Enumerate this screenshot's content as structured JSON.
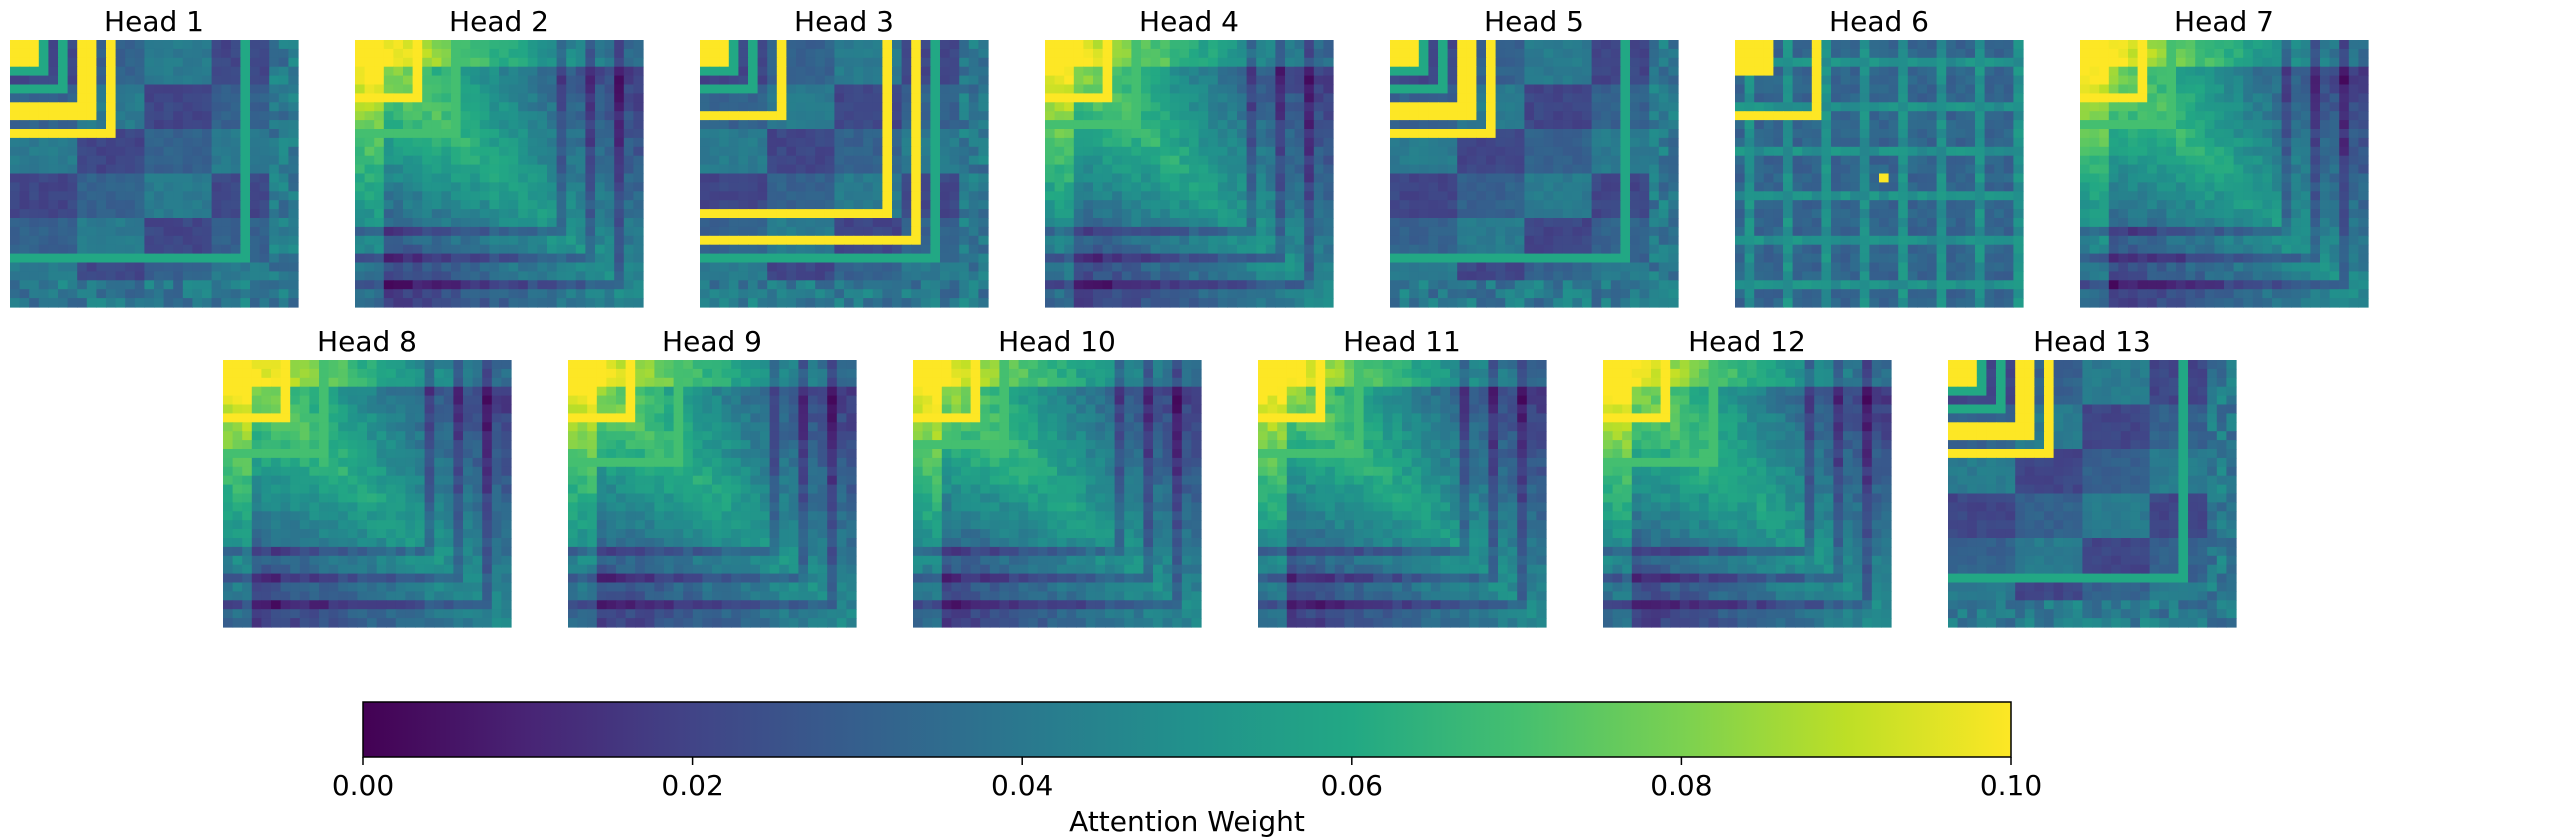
{
  "chart_data": {
    "type": "heatmap",
    "panels": [
      {
        "title": "Head 1",
        "pattern": "banded"
      },
      {
        "title": "Head 2",
        "pattern": "diffuse"
      },
      {
        "title": "Head 3",
        "pattern": "banded"
      },
      {
        "title": "Head 4",
        "pattern": "diffuse"
      },
      {
        "title": "Head 5",
        "pattern": "banded"
      },
      {
        "title": "Head 6",
        "pattern": "grid"
      },
      {
        "title": "Head 7",
        "pattern": "diffuse"
      },
      {
        "title": "Head 8",
        "pattern": "diffuse"
      },
      {
        "title": "Head 9",
        "pattern": "diffuse"
      },
      {
        "title": "Head 10",
        "pattern": "diffuse"
      },
      {
        "title": "Head 11",
        "pattern": "diffuse"
      },
      {
        "title": "Head 12",
        "pattern": "diffuse"
      },
      {
        "title": "Head 13",
        "pattern": "banded"
      }
    ],
    "colormap": "viridis",
    "colorbar": {
      "label": "Attention Weight",
      "range": [
        0.0,
        0.1
      ],
      "ticks": [
        "0.00",
        "0.02",
        "0.04",
        "0.06",
        "0.08",
        "0.10"
      ]
    },
    "axes_visible": false
  }
}
